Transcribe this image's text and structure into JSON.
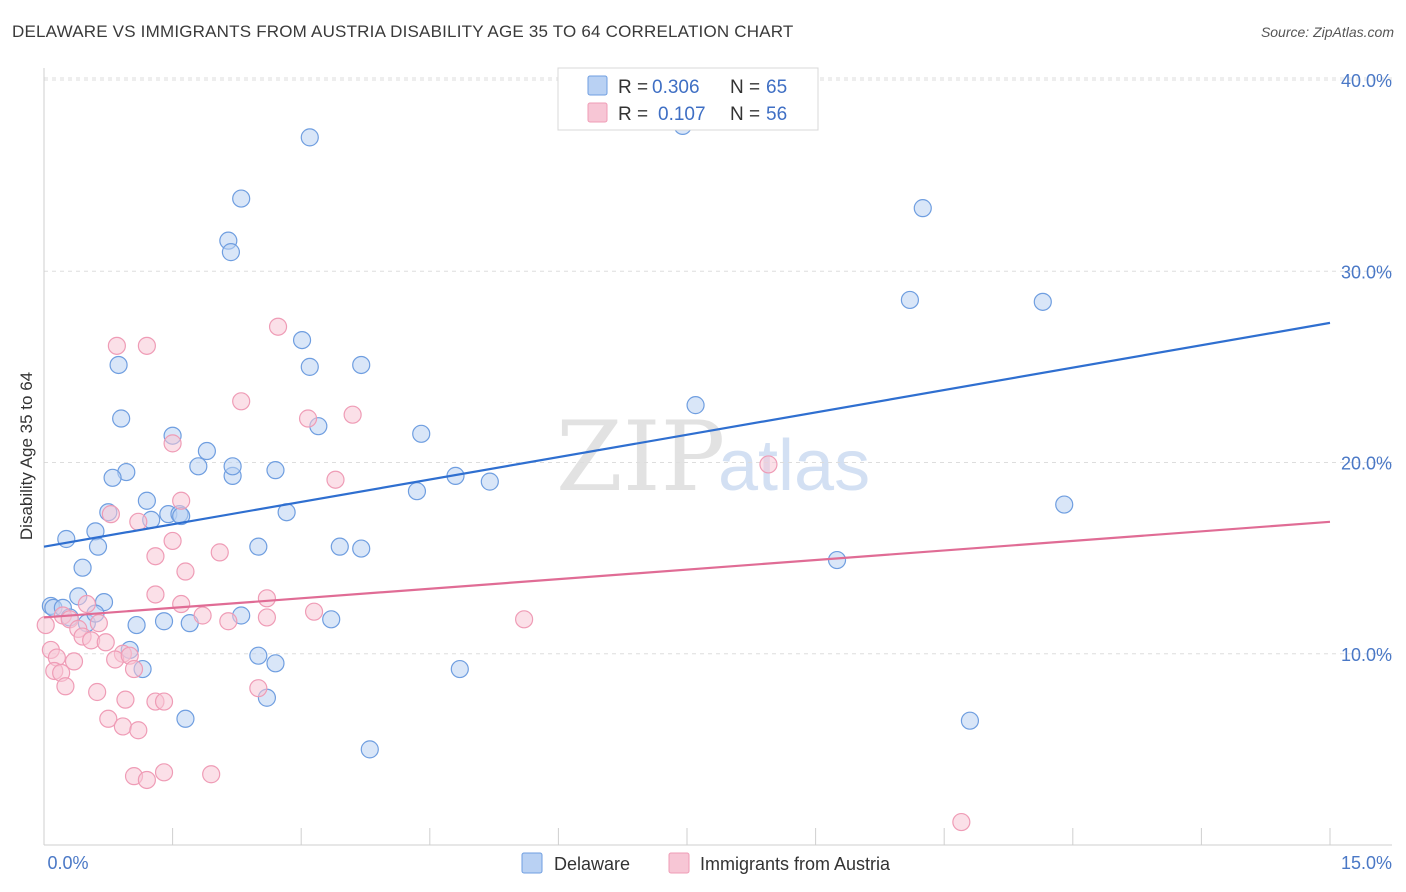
{
  "header": {
    "title": "DELAWARE VS IMMIGRANTS FROM AUSTRIA DISABILITY AGE 35 TO 64 CORRELATION CHART",
    "source": "Source: ZipAtlas.com"
  },
  "watermark": {
    "zip": "ZIP",
    "atlas": "atlas"
  },
  "legend": {
    "rows": [
      {
        "r_label": "R =",
        "r_value": "0.306",
        "n_label": "N =",
        "n_value": "65"
      },
      {
        "r_label": "R =",
        "r_value": "0.107",
        "n_label": "N =",
        "n_value": "56"
      }
    ]
  },
  "chart_data": {
    "type": "scatter",
    "title": "DELAWARE VS IMMIGRANTS FROM AUSTRIA DISABILITY AGE 35 TO 64 CORRELATION CHART",
    "xlabel": "",
    "ylabel": "Disability Age 35 to 64",
    "xlim": [
      0,
      15
    ],
    "ylim": [
      0,
      40
    ],
    "x_tick_labels": [
      "0.0%",
      "15.0%"
    ],
    "y_ticks": [
      10,
      20,
      30,
      40
    ],
    "y_tick_labels": [
      "10.0%",
      "20.0%",
      "30.0%",
      "40.0%"
    ],
    "grid": true,
    "series": [
      {
        "name": "Delaware",
        "color": "#6f9ee0",
        "fill": "#b9d1f3",
        "r": 0.306,
        "n": 65,
        "trend": {
          "x": [
            0,
            15
          ],
          "y": [
            15.6,
            27.3
          ],
          "color": "#2f6fd0"
        },
        "points": [
          [
            3.1,
            37.0
          ],
          [
            2.3,
            33.8
          ],
          [
            2.15,
            31.6
          ],
          [
            2.18,
            31.0
          ],
          [
            3.01,
            26.4
          ],
          [
            0.87,
            25.1
          ],
          [
            3.1,
            25.0
          ],
          [
            3.7,
            25.1
          ],
          [
            0.9,
            22.3
          ],
          [
            1.5,
            21.4
          ],
          [
            3.2,
            21.9
          ],
          [
            4.4,
            21.5
          ],
          [
            1.9,
            20.6
          ],
          [
            0.96,
            19.5
          ],
          [
            1.8,
            19.8
          ],
          [
            2.2,
            19.3
          ],
          [
            2.2,
            19.8
          ],
          [
            2.7,
            19.6
          ],
          [
            0.8,
            19.2
          ],
          [
            4.8,
            19.3
          ],
          [
            5.2,
            19.0
          ],
          [
            4.35,
            18.5
          ],
          [
            1.2,
            18.0
          ],
          [
            0.75,
            17.4
          ],
          [
            1.25,
            17.0
          ],
          [
            1.45,
            17.3
          ],
          [
            1.58,
            17.3
          ],
          [
            1.6,
            17.2
          ],
          [
            2.83,
            17.4
          ],
          [
            0.26,
            16.0
          ],
          [
            0.6,
            16.4
          ],
          [
            0.63,
            15.6
          ],
          [
            2.5,
            15.6
          ],
          [
            3.45,
            15.6
          ],
          [
            3.7,
            15.5
          ],
          [
            0.45,
            14.5
          ],
          [
            0.4,
            13.0
          ],
          [
            0.7,
            12.7
          ],
          [
            0.08,
            12.5
          ],
          [
            0.11,
            12.4
          ],
          [
            0.22,
            12.4
          ],
          [
            0.3,
            11.9
          ],
          [
            0.5,
            11.6
          ],
          [
            1.08,
            11.5
          ],
          [
            1.4,
            11.7
          ],
          [
            1.7,
            11.6
          ],
          [
            2.3,
            12.0
          ],
          [
            3.35,
            11.8
          ],
          [
            1.0,
            10.2
          ],
          [
            2.5,
            9.9
          ],
          [
            2.7,
            9.5
          ],
          [
            1.15,
            9.2
          ],
          [
            4.85,
            9.2
          ],
          [
            2.6,
            7.7
          ],
          [
            1.65,
            6.6
          ],
          [
            3.8,
            5.0
          ],
          [
            7.45,
            37.6
          ],
          [
            7.6,
            23.0
          ],
          [
            10.25,
            33.3
          ],
          [
            10.1,
            28.5
          ],
          [
            11.65,
            28.4
          ],
          [
            9.25,
            14.9
          ],
          [
            11.9,
            17.8
          ],
          [
            10.8,
            6.5
          ],
          [
            0.6,
            12.1
          ]
        ]
      },
      {
        "name": "Immigrants from Austria",
        "color": "#ef9cb6",
        "fill": "#f7c6d5",
        "r": 0.107,
        "n": 56,
        "trend": {
          "x": [
            0,
            15
          ],
          "y": [
            11.9,
            16.9
          ],
          "color": "#e06c95"
        },
        "points": [
          [
            2.73,
            27.1
          ],
          [
            0.85,
            26.1
          ],
          [
            1.2,
            26.1
          ],
          [
            2.3,
            23.2
          ],
          [
            3.6,
            22.5
          ],
          [
            3.08,
            22.3
          ],
          [
            1.5,
            21.0
          ],
          [
            8.45,
            19.9
          ],
          [
            3.4,
            19.1
          ],
          [
            1.6,
            18.0
          ],
          [
            0.78,
            17.3
          ],
          [
            1.1,
            16.9
          ],
          [
            1.5,
            15.9
          ],
          [
            1.3,
            15.1
          ],
          [
            2.05,
            15.3
          ],
          [
            1.65,
            14.3
          ],
          [
            1.3,
            13.1
          ],
          [
            2.6,
            12.9
          ],
          [
            0.5,
            12.6
          ],
          [
            1.6,
            12.6
          ],
          [
            3.15,
            12.2
          ],
          [
            0.22,
            12.0
          ],
          [
            0.3,
            11.8
          ],
          [
            0.64,
            11.6
          ],
          [
            1.85,
            12.0
          ],
          [
            2.15,
            11.7
          ],
          [
            2.6,
            11.9
          ],
          [
            5.6,
            11.8
          ],
          [
            0.4,
            11.3
          ],
          [
            0.45,
            10.9
          ],
          [
            0.55,
            10.7
          ],
          [
            0.72,
            10.6
          ],
          [
            0.92,
            10.0
          ],
          [
            0.08,
            10.2
          ],
          [
            0.15,
            9.8
          ],
          [
            0.35,
            9.6
          ],
          [
            0.83,
            9.7
          ],
          [
            1.0,
            9.9
          ],
          [
            0.12,
            9.1
          ],
          [
            0.2,
            9.0
          ],
          [
            0.25,
            8.3
          ],
          [
            1.05,
            9.2
          ],
          [
            0.62,
            8.0
          ],
          [
            2.5,
            8.2
          ],
          [
            0.95,
            7.6
          ],
          [
            1.3,
            7.5
          ],
          [
            1.4,
            7.5
          ],
          [
            0.75,
            6.6
          ],
          [
            0.92,
            6.2
          ],
          [
            1.1,
            6.0
          ],
          [
            1.05,
            3.6
          ],
          [
            1.2,
            3.4
          ],
          [
            1.4,
            3.8
          ],
          [
            1.95,
            3.7
          ],
          [
            10.7,
            1.2
          ],
          [
            0.02,
            11.5
          ]
        ]
      }
    ]
  }
}
